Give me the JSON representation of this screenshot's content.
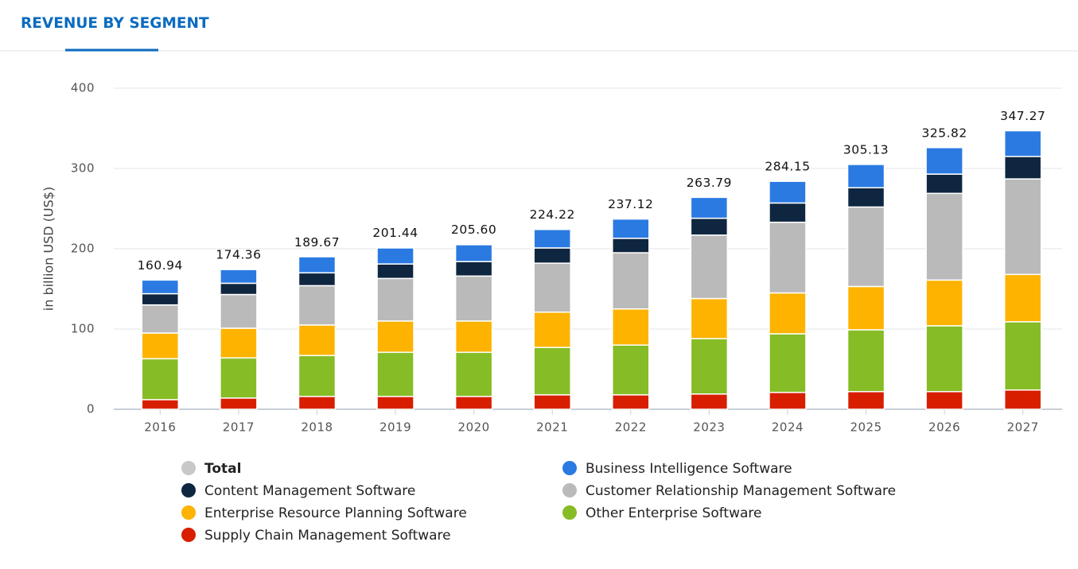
{
  "header": {
    "title": "REVENUE BY SEGMENT"
  },
  "chart_data": {
    "type": "stacked-bar",
    "y_label": "in billion USD (US$)",
    "categories": [
      "2016",
      "2017",
      "2018",
      "2019",
      "2020",
      "2021",
      "2022",
      "2023",
      "2024",
      "2025",
      "2026",
      "2027"
    ],
    "ylim": [
      0,
      400
    ],
    "yticks": [
      0,
      100,
      200,
      300,
      400
    ],
    "grid": true,
    "total": {
      "name": "Total",
      "color": "#c8c8c8",
      "visible": false,
      "values": [
        160.94,
        174.36,
        189.67,
        201.44,
        205.6,
        224.22,
        237.12,
        263.79,
        284.15,
        305.13,
        325.82,
        347.27
      ],
      "value_labels": [
        "160.94",
        "174.36",
        "189.67",
        "201.44",
        "205.60",
        "224.22",
        "237.12",
        "263.79",
        "284.15",
        "305.13",
        "325.82",
        "347.27"
      ]
    },
    "series": [
      {
        "name": "Business Intelligence Software",
        "color": "#2a7ae2",
        "values": [
          17,
          17,
          20,
          20,
          21,
          23,
          24,
          26,
          27,
          29,
          33,
          32
        ]
      },
      {
        "name": "Content Management Software",
        "color": "#0f2640",
        "values": [
          14,
          14,
          16,
          18,
          18,
          19,
          18,
          21,
          24,
          24,
          24,
          28
        ]
      },
      {
        "name": "Customer Relationship Management Software",
        "color": "#bababa",
        "values": [
          35,
          42,
          49,
          53,
          56,
          61,
          70,
          79,
          88,
          99,
          108,
          119
        ]
      },
      {
        "name": "Enterprise Resource Planning Software",
        "color": "#fdb300",
        "values": [
          32,
          37,
          38,
          39,
          39,
          44,
          45,
          50,
          51,
          54,
          57,
          59
        ]
      },
      {
        "name": "Other Enterprise Software",
        "color": "#86bc25",
        "values": [
          51,
          50,
          51,
          55,
          55,
          59,
          62,
          69,
          73,
          77,
          82,
          85
        ]
      },
      {
        "name": "Supply Chain Management Software",
        "color": "#d71f00",
        "values": [
          12,
          14,
          16,
          16,
          16,
          18,
          18,
          19,
          21,
          22,
          22,
          24
        ]
      }
    ]
  }
}
